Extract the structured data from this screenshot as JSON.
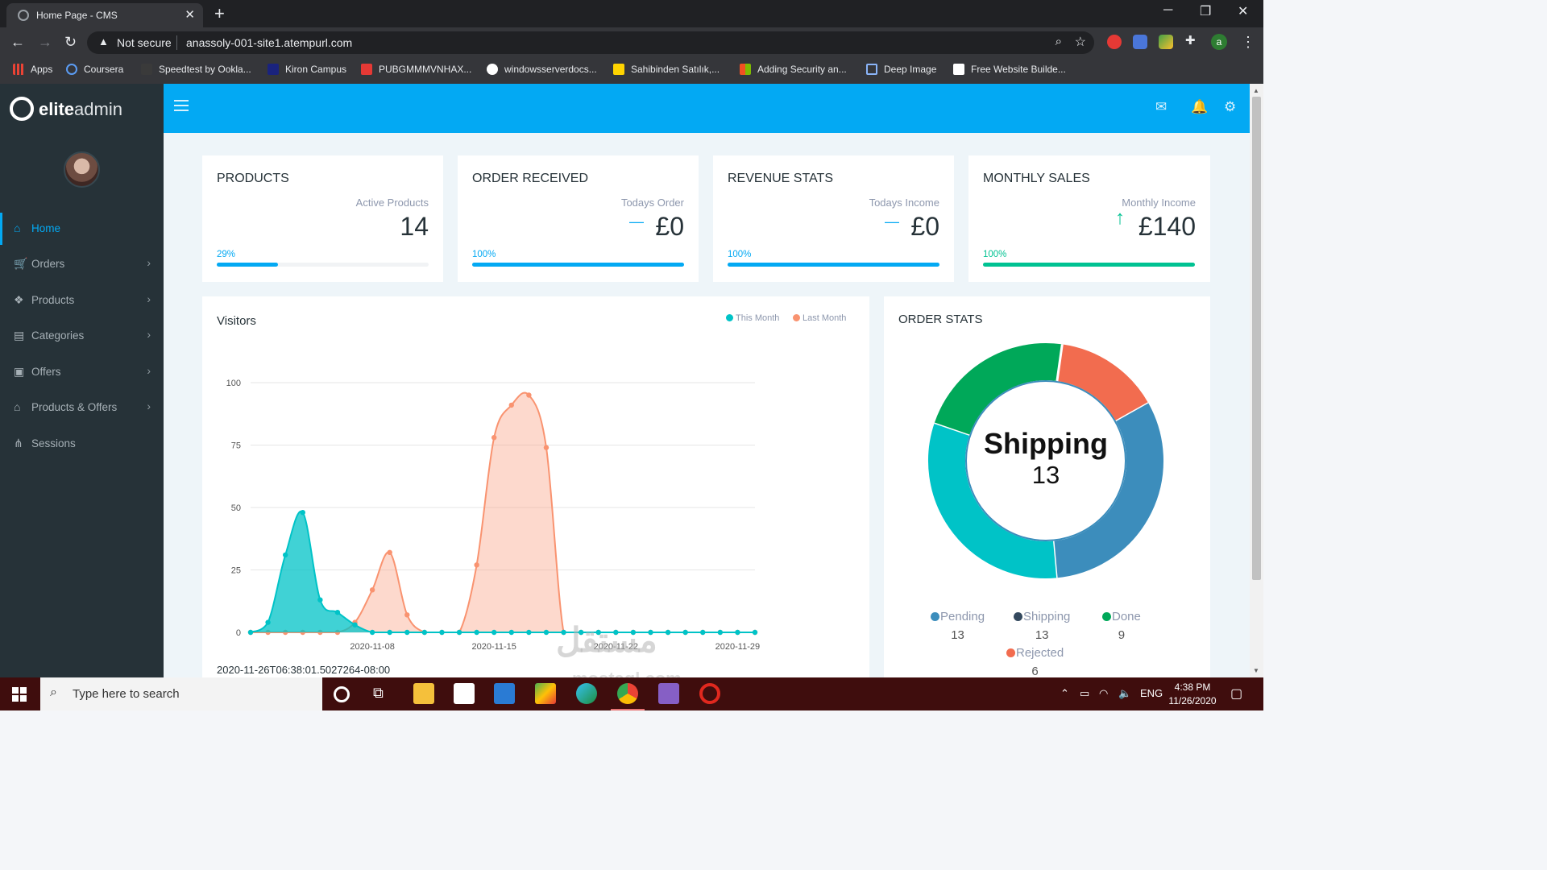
{
  "browser": {
    "tab_title": "Home Page - CMS",
    "tab_close": "✕",
    "new_tab": "+",
    "security_label": "Not secure",
    "url": "anassoly-001-site1.atempurl.com",
    "profile_initial": "a",
    "bookmarks": [
      {
        "label": "Apps",
        "color": "#ea4335"
      },
      {
        "label": "Coursera",
        "color": "#2a73cc"
      },
      {
        "label": "Speedtest by Ookla...",
        "color": "#3a3a3a"
      },
      {
        "label": "Kiron Campus",
        "color": "#1a237e"
      },
      {
        "label": "PUBGMMMVNHAX...",
        "color": "#e53935"
      },
      {
        "label": "windowsserverdocs...",
        "color": "#ffffff"
      },
      {
        "label": "Sahibinden Satılık,...",
        "color": "#ffd400"
      },
      {
        "label": "Adding Security an...",
        "color": "#7cb342"
      },
      {
        "label": "Deep Image",
        "color": "#8ab4f8"
      },
      {
        "label": "Free Website Builde...",
        "color": "#ffffff"
      }
    ]
  },
  "brand": {
    "bold": "elite",
    "light": "admin"
  },
  "sidebar": {
    "items": [
      {
        "label": "Home",
        "icon": "home-icon",
        "active": true
      },
      {
        "label": "Orders",
        "icon": "cart-icon"
      },
      {
        "label": "Products",
        "icon": "dropbox-icon"
      },
      {
        "label": "Categories",
        "icon": "clipboard-icon"
      },
      {
        "label": "Offers",
        "icon": "gift-icon"
      },
      {
        "label": "Products & Offers",
        "icon": "shopping-bag-icon"
      },
      {
        "label": "Sessions",
        "icon": "sitemap-icon"
      }
    ]
  },
  "stats": [
    {
      "title": "PRODUCTS",
      "subtitle": "Active Products",
      "value": "14",
      "percent_label": "29%",
      "percent": 29,
      "color": "#03a9f3",
      "trend": ""
    },
    {
      "title": "ORDER RECEIVED",
      "subtitle": "Todays Order",
      "value": "£0",
      "percent_label": "100%",
      "percent": 100,
      "color": "#03a9f3",
      "trend": "—"
    },
    {
      "title": "REVENUE STATS",
      "subtitle": "Todays Income",
      "value": "£0",
      "percent_label": "100%",
      "percent": 100,
      "color": "#03a9f3",
      "trend": "—"
    },
    {
      "title": "MONTHLY SALES",
      "subtitle": "Monthly Income",
      "value": "£140",
      "percent_label": "100%",
      "percent": 100,
      "color": "#00c292",
      "trend": "↑"
    }
  ],
  "visitors": {
    "title": "Visitors",
    "legend_this": "This Month",
    "legend_last": "Last Month",
    "timestamp": "2020-11-26T06:38:01.5027264-08:00"
  },
  "chart_data": {
    "type": "area",
    "title": "Visitors",
    "ylim": [
      0,
      100
    ],
    "yticks": [
      0,
      25,
      50,
      75,
      100
    ],
    "xticks": [
      "2020-11-08",
      "2020-11-15",
      "2020-11-22",
      "2020-11-29"
    ],
    "x": [
      "2020-11-01",
      "2020-11-02",
      "2020-11-03",
      "2020-11-04",
      "2020-11-05",
      "2020-11-06",
      "2020-11-07",
      "2020-11-08",
      "2020-11-09",
      "2020-11-10",
      "2020-11-11",
      "2020-11-12",
      "2020-11-13",
      "2020-11-14",
      "2020-11-15",
      "2020-11-16",
      "2020-11-17",
      "2020-11-18",
      "2020-11-19",
      "2020-11-20",
      "2020-11-21",
      "2020-11-22",
      "2020-11-23",
      "2020-11-24",
      "2020-11-25",
      "2020-11-26",
      "2020-11-27",
      "2020-11-28",
      "2020-11-29",
      "2020-11-30"
    ],
    "series": [
      {
        "name": "This Month",
        "color": "#00c3c7",
        "values": [
          0,
          4,
          31,
          48,
          13,
          8,
          3,
          0,
          0,
          0,
          0,
          0,
          0,
          0,
          0,
          0,
          0,
          0,
          0,
          0,
          0,
          0,
          0,
          0,
          0,
          0,
          0,
          0,
          0,
          0
        ]
      },
      {
        "name": "Last Month",
        "color": "#f99370",
        "values": [
          0,
          0,
          0,
          0,
          0,
          0,
          4,
          17,
          32,
          7,
          0,
          0,
          0,
          27,
          78,
          91,
          95,
          74,
          0,
          0,
          0,
          0,
          0,
          0,
          0,
          0,
          0,
          0,
          0,
          0
        ]
      }
    ],
    "grid": true,
    "legend": "top-right"
  },
  "order_stats": {
    "title": "ORDER STATS",
    "center_label": "Shipping",
    "center_value": "13",
    "segments": [
      {
        "name": "Pending",
        "value": 13,
        "color": "#00c3c7"
      },
      {
        "name": "Shipping",
        "value": 13,
        "color": "#3c8dbc"
      },
      {
        "name": "Done",
        "value": 9,
        "color": "#00a859"
      },
      {
        "name": "Rejected",
        "value": 6,
        "color": "#f26c4f"
      }
    ],
    "legend": [
      {
        "name": "Pending",
        "value": "13",
        "color": "#3c8dbc"
      },
      {
        "name": "Shipping",
        "value": "13",
        "color": "#34495e"
      },
      {
        "name": "Done",
        "value": "9",
        "color": "#00a859"
      },
      {
        "name": "Rejected",
        "value": "6",
        "color": "#f26c4f"
      }
    ]
  },
  "watermark": {
    "text": "مستقل",
    "sub": "mostaql.com"
  },
  "taskbar": {
    "search_placeholder": "Type here to search",
    "lang": "ENG",
    "time": "4:38 PM",
    "date": "11/26/2020"
  }
}
